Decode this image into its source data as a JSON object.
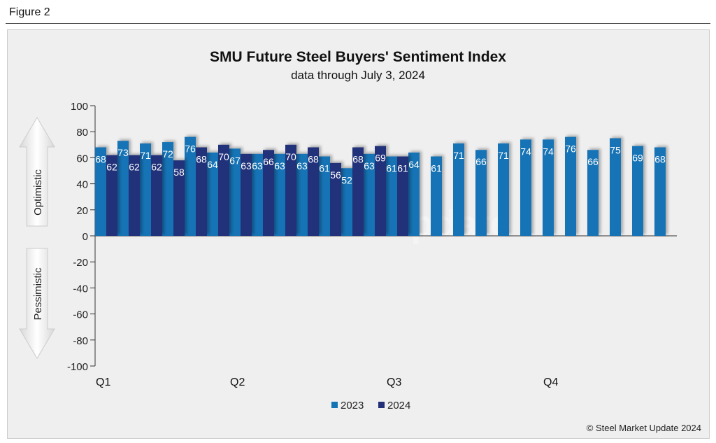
{
  "figure_label": "Figure 2",
  "copyright": "© Steel Market Update 2024",
  "watermark": "Steel Market Update",
  "side_labels": {
    "optimistic": "Optimistic",
    "pessimistic": "Pessimistic"
  },
  "colors": {
    "2023": "#1373b5",
    "2024": "#22307a"
  },
  "chart_data": {
    "type": "bar",
    "title": "SMU Future Steel Buyers' Sentiment Index",
    "subtitle": "data through July 3, 2024",
    "ylim": [
      -100,
      100
    ],
    "yticks": [
      100,
      80,
      60,
      40,
      20,
      0,
      -20,
      -40,
      -60,
      -80,
      -100
    ],
    "quarter_labels": [
      {
        "label": "Q1",
        "slot": 0
      },
      {
        "label": "Q2",
        "slot": 6
      },
      {
        "label": "Q3",
        "slot": 13
      },
      {
        "label": "Q4",
        "slot": 20
      }
    ],
    "series": [
      {
        "name": "2023",
        "values": [
          68,
          73,
          71,
          72,
          76,
          64,
          67,
          63,
          63,
          63,
          61,
          52,
          63,
          61,
          64,
          61,
          71,
          66,
          71,
          74,
          74,
          76,
          66,
          75,
          69,
          68
        ]
      },
      {
        "name": "2024",
        "values": [
          62,
          62,
          62,
          58,
          68,
          70,
          63,
          66,
          70,
          68,
          56,
          68,
          69,
          61,
          null,
          null,
          null,
          null,
          null,
          null,
          null,
          null,
          null,
          null,
          null,
          null
        ]
      }
    ],
    "legend": "bottom"
  }
}
